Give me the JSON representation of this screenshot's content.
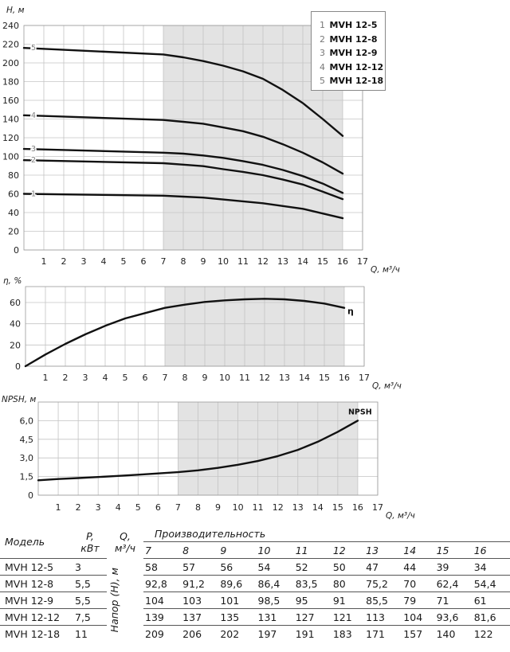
{
  "chart_data": [
    {
      "type": "line",
      "ylabel": "H, м",
      "xlabel": "Q, м³/ч",
      "xlim": [
        0,
        17
      ],
      "ylim": [
        0,
        240
      ],
      "x_ticks": [
        "1",
        "2",
        "3",
        "4",
        "5",
        "6",
        "7",
        "8",
        "9",
        "10",
        "11",
        "12",
        "13",
        "14",
        "15",
        "16",
        "17"
      ],
      "y_ticks": [
        "0",
        "20",
        "40",
        "60",
        "80",
        "100",
        "120",
        "140",
        "160",
        "180",
        "200",
        "220",
        "240"
      ],
      "shaded_range": [
        7,
        16
      ],
      "series": [
        {
          "name": "1",
          "x": [
            0,
            7,
            8,
            9,
            10,
            11,
            12,
            13,
            14,
            15,
            16
          ],
          "values": [
            60,
            58,
            57,
            56,
            54,
            52,
            50,
            47,
            44,
            39,
            34
          ]
        },
        {
          "name": "2",
          "x": [
            0,
            7,
            8,
            9,
            10,
            11,
            12,
            13,
            14,
            15,
            16
          ],
          "values": [
            96,
            92.8,
            91.2,
            89.6,
            86.4,
            83.5,
            80,
            75.2,
            70,
            62.4,
            54.4
          ]
        },
        {
          "name": "3",
          "x": [
            0,
            7,
            8,
            9,
            10,
            11,
            12,
            13,
            14,
            15,
            16
          ],
          "values": [
            108,
            104,
            103,
            101,
            98.5,
            95,
            91,
            85.5,
            79,
            71,
            61
          ]
        },
        {
          "name": "4",
          "x": [
            0,
            7,
            8,
            9,
            10,
            11,
            12,
            13,
            14,
            15,
            16
          ],
          "values": [
            144,
            139,
            137,
            135,
            131,
            127,
            121,
            113,
            104,
            93.6,
            81.6
          ]
        },
        {
          "name": "5",
          "x": [
            0,
            7,
            8,
            9,
            10,
            11,
            12,
            13,
            14,
            15,
            16
          ],
          "values": [
            216,
            209,
            206,
            202,
            197,
            191,
            183,
            171,
            157,
            140,
            122
          ]
        }
      ],
      "legend": [
        {
          "num": "1",
          "name": "MVH 12-5"
        },
        {
          "num": "2",
          "name": "MVH 12-8"
        },
        {
          "num": "3",
          "name": "MVH 12-9"
        },
        {
          "num": "4",
          "name": "MVH 12-12"
        },
        {
          "num": "5",
          "name": "MVH 12-18"
        }
      ],
      "legend_position": "top-right"
    },
    {
      "type": "line",
      "ylabel": "η, %",
      "xlabel": "Q, м³/ч",
      "xlim": [
        0,
        17
      ],
      "ylim": [
        0,
        75
      ],
      "x_ticks": [
        "1",
        "2",
        "3",
        "4",
        "5",
        "6",
        "7",
        "8",
        "9",
        "10",
        "11",
        "12",
        "13",
        "14",
        "15",
        "16",
        "17"
      ],
      "y_ticks": [
        "0",
        "20",
        "40",
        "60"
      ],
      "shaded_range": [
        7,
        16
      ],
      "series": [
        {
          "name": "η",
          "x": [
            0,
            1,
            2,
            3,
            4,
            5,
            6,
            7,
            8,
            9,
            10,
            11,
            12,
            13,
            14,
            15,
            16
          ],
          "values": [
            0,
            11,
            21,
            30,
            38,
            45,
            50,
            55,
            58,
            60.5,
            62,
            63,
            63.5,
            63,
            61.5,
            59,
            55
          ]
        }
      ]
    },
    {
      "type": "line",
      "ylabel": "NPSH, м",
      "xlabel": "Q, м³/ч",
      "xlim": [
        0,
        17
      ],
      "ylim": [
        0,
        7.5
      ],
      "x_ticks": [
        "1",
        "2",
        "3",
        "4",
        "5",
        "6",
        "7",
        "8",
        "9",
        "10",
        "11",
        "12",
        "13",
        "14",
        "15",
        "16",
        "17"
      ],
      "y_ticks": [
        "0",
        "1,5",
        "3,0",
        "4,5",
        "6,0"
      ],
      "shaded_range": [
        7,
        16
      ],
      "series": [
        {
          "name": "NPSH",
          "x": [
            0,
            1,
            2,
            3,
            4,
            5,
            6,
            7,
            8,
            9,
            10,
            11,
            12,
            13,
            14,
            15,
            16
          ],
          "values": [
            1.2,
            1.3,
            1.38,
            1.46,
            1.55,
            1.65,
            1.75,
            1.85,
            2.0,
            2.2,
            2.45,
            2.75,
            3.15,
            3.65,
            4.3,
            5.1,
            6.0
          ]
        }
      ]
    }
  ],
  "table": {
    "header_model": "Модель",
    "header_power_top": "P,",
    "header_power_bottom": "кВт",
    "header_flow_top": "Q,",
    "header_flow_bottom": "м³/ч",
    "header_performance": "Производительность",
    "header_head": "Напор (H), м",
    "flow_values": [
      "7",
      "8",
      "9",
      "10",
      "11",
      "12",
      "13",
      "14",
      "15",
      "16"
    ],
    "rows": [
      {
        "model": "MVH 12-5",
        "power": "3",
        "values": [
          "58",
          "57",
          "56",
          "54",
          "52",
          "50",
          "47",
          "44",
          "39",
          "34"
        ]
      },
      {
        "model": "MVH 12-8",
        "power": "5,5",
        "values": [
          "92,8",
          "91,2",
          "89,6",
          "86,4",
          "83,5",
          "80",
          "75,2",
          "70",
          "62,4",
          "54,4"
        ]
      },
      {
        "model": "MVH 12-9",
        "power": "5,5",
        "values": [
          "104",
          "103",
          "101",
          "98,5",
          "95",
          "91",
          "85,5",
          "79",
          "71",
          "61"
        ]
      },
      {
        "model": "MVH 12-12",
        "power": "7,5",
        "values": [
          "139",
          "137",
          "135",
          "131",
          "127",
          "121",
          "113",
          "104",
          "93,6",
          "81,6"
        ]
      },
      {
        "model": "MVH 12-18",
        "power": "11",
        "values": [
          "209",
          "206",
          "202",
          "197",
          "191",
          "183",
          "171",
          "157",
          "140",
          "122"
        ]
      }
    ]
  },
  "colors": {
    "shade": "#e3e3e3",
    "grid": "#c4c4c4",
    "curve": "#111111",
    "label_gray": "#808080"
  }
}
